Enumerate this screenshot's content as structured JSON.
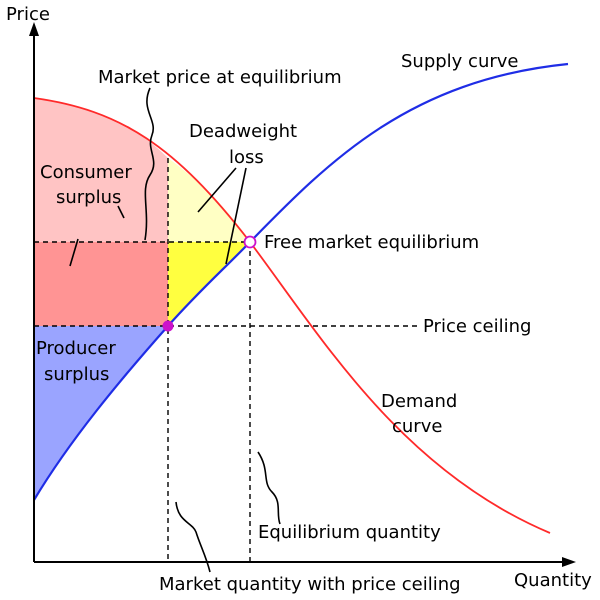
{
  "axes": {
    "y_label": "Price",
    "x_label": "Quantity"
  },
  "labels": {
    "supply_curve": "Supply curve",
    "market_price": "Market price at equilibrium",
    "deadweight_line1": "Deadweight",
    "deadweight_line2": "loss",
    "consumer_line1": "Consumer",
    "consumer_line2": "surplus",
    "free_market_eq": "Free market equilibrium",
    "price_ceiling": "Price ceiling",
    "producer_line1": "Producer",
    "producer_line2": "surplus",
    "demand_line1": "Demand",
    "demand_line2": "curve",
    "equilibrium_quantity": "Equilibrium quantity",
    "market_quantity_ceiling": "Market quantity with price ceiling"
  },
  "colors": {
    "supply": "#1f2de6",
    "demand": "#ff2a2a",
    "consumer_surplus_light": "#ffc4c4",
    "consumer_surplus_dark": "#ff9494",
    "deadweight_light": "#ffffc4",
    "deadweight_dark": "#ffff40",
    "producer_surplus": "#9aa4ff",
    "ceiling_point": "#cc11cc",
    "equilibrium_point": "#cc11cc"
  }
}
